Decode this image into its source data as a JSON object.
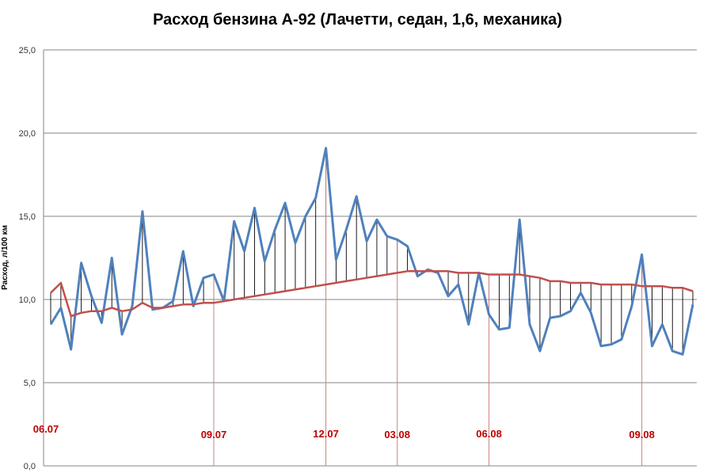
{
  "chart_data": {
    "type": "line",
    "title": "Расход бензина А-92 (Лачетти, седан, 1,6, механика)",
    "ylabel": "Расход, л/100 км",
    "xlabel": "",
    "ylim": [
      0,
      25
    ],
    "yticks": [
      "0,0",
      "5,0",
      "10,0",
      "15,0",
      "20,0",
      "25,0"
    ],
    "grid": true,
    "series": [
      {
        "name": "",
        "color": "#4f81bd",
        "values": [
          8.5,
          9.5,
          7.0,
          12.2,
          10.2,
          8.6,
          12.5,
          7.9,
          9.6,
          15.3,
          9.4,
          9.5,
          9.9,
          12.9,
          9.6,
          11.3,
          11.5,
          9.9,
          14.7,
          12.9,
          15.5,
          12.3,
          14.2,
          15.8,
          13.4,
          15.0,
          16.1,
          19.1,
          12.4,
          14.2,
          16.2,
          13.5,
          14.8,
          13.8,
          13.6,
          13.2,
          11.4,
          11.8,
          11.6,
          10.2,
          10.9,
          8.5,
          11.6,
          9.1,
          8.2,
          8.3,
          14.8,
          8.5,
          6.9,
          8.9,
          9.0,
          9.3,
          10.4,
          9.2,
          7.2,
          7.3,
          7.6,
          9.6,
          12.7,
          7.2,
          8.5,
          6.9,
          6.7,
          9.7
        ]
      },
      {
        "name": "",
        "color": "#c0504d",
        "values": [
          10.4,
          11.0,
          9.0,
          9.2,
          9.3,
          9.3,
          9.5,
          9.3,
          9.4,
          9.8,
          9.5,
          9.5,
          9.6,
          9.7,
          9.7,
          9.8,
          9.8,
          9.9,
          10.0,
          10.1,
          10.2,
          10.3,
          10.4,
          10.5,
          10.6,
          10.7,
          10.8,
          10.9,
          11.0,
          11.1,
          11.2,
          11.3,
          11.4,
          11.5,
          11.6,
          11.7,
          11.7,
          11.7,
          11.7,
          11.7,
          11.6,
          11.6,
          11.6,
          11.5,
          11.5,
          11.5,
          11.5,
          11.4,
          11.3,
          11.1,
          11.1,
          11.0,
          11.0,
          11.0,
          10.9,
          10.9,
          10.9,
          10.9,
          10.8,
          10.8,
          10.8,
          10.7,
          10.7,
          10.5
        ]
      }
    ],
    "date_markers": [
      {
        "label": "06.07",
        "index": 0
      },
      {
        "label": "09.07",
        "index": 16
      },
      {
        "label": "12.07",
        "index": 27
      },
      {
        "label": "03.08",
        "index": 34
      },
      {
        "label": "06.08",
        "index": 43
      },
      {
        "label": "09.08",
        "index": 58
      }
    ]
  }
}
